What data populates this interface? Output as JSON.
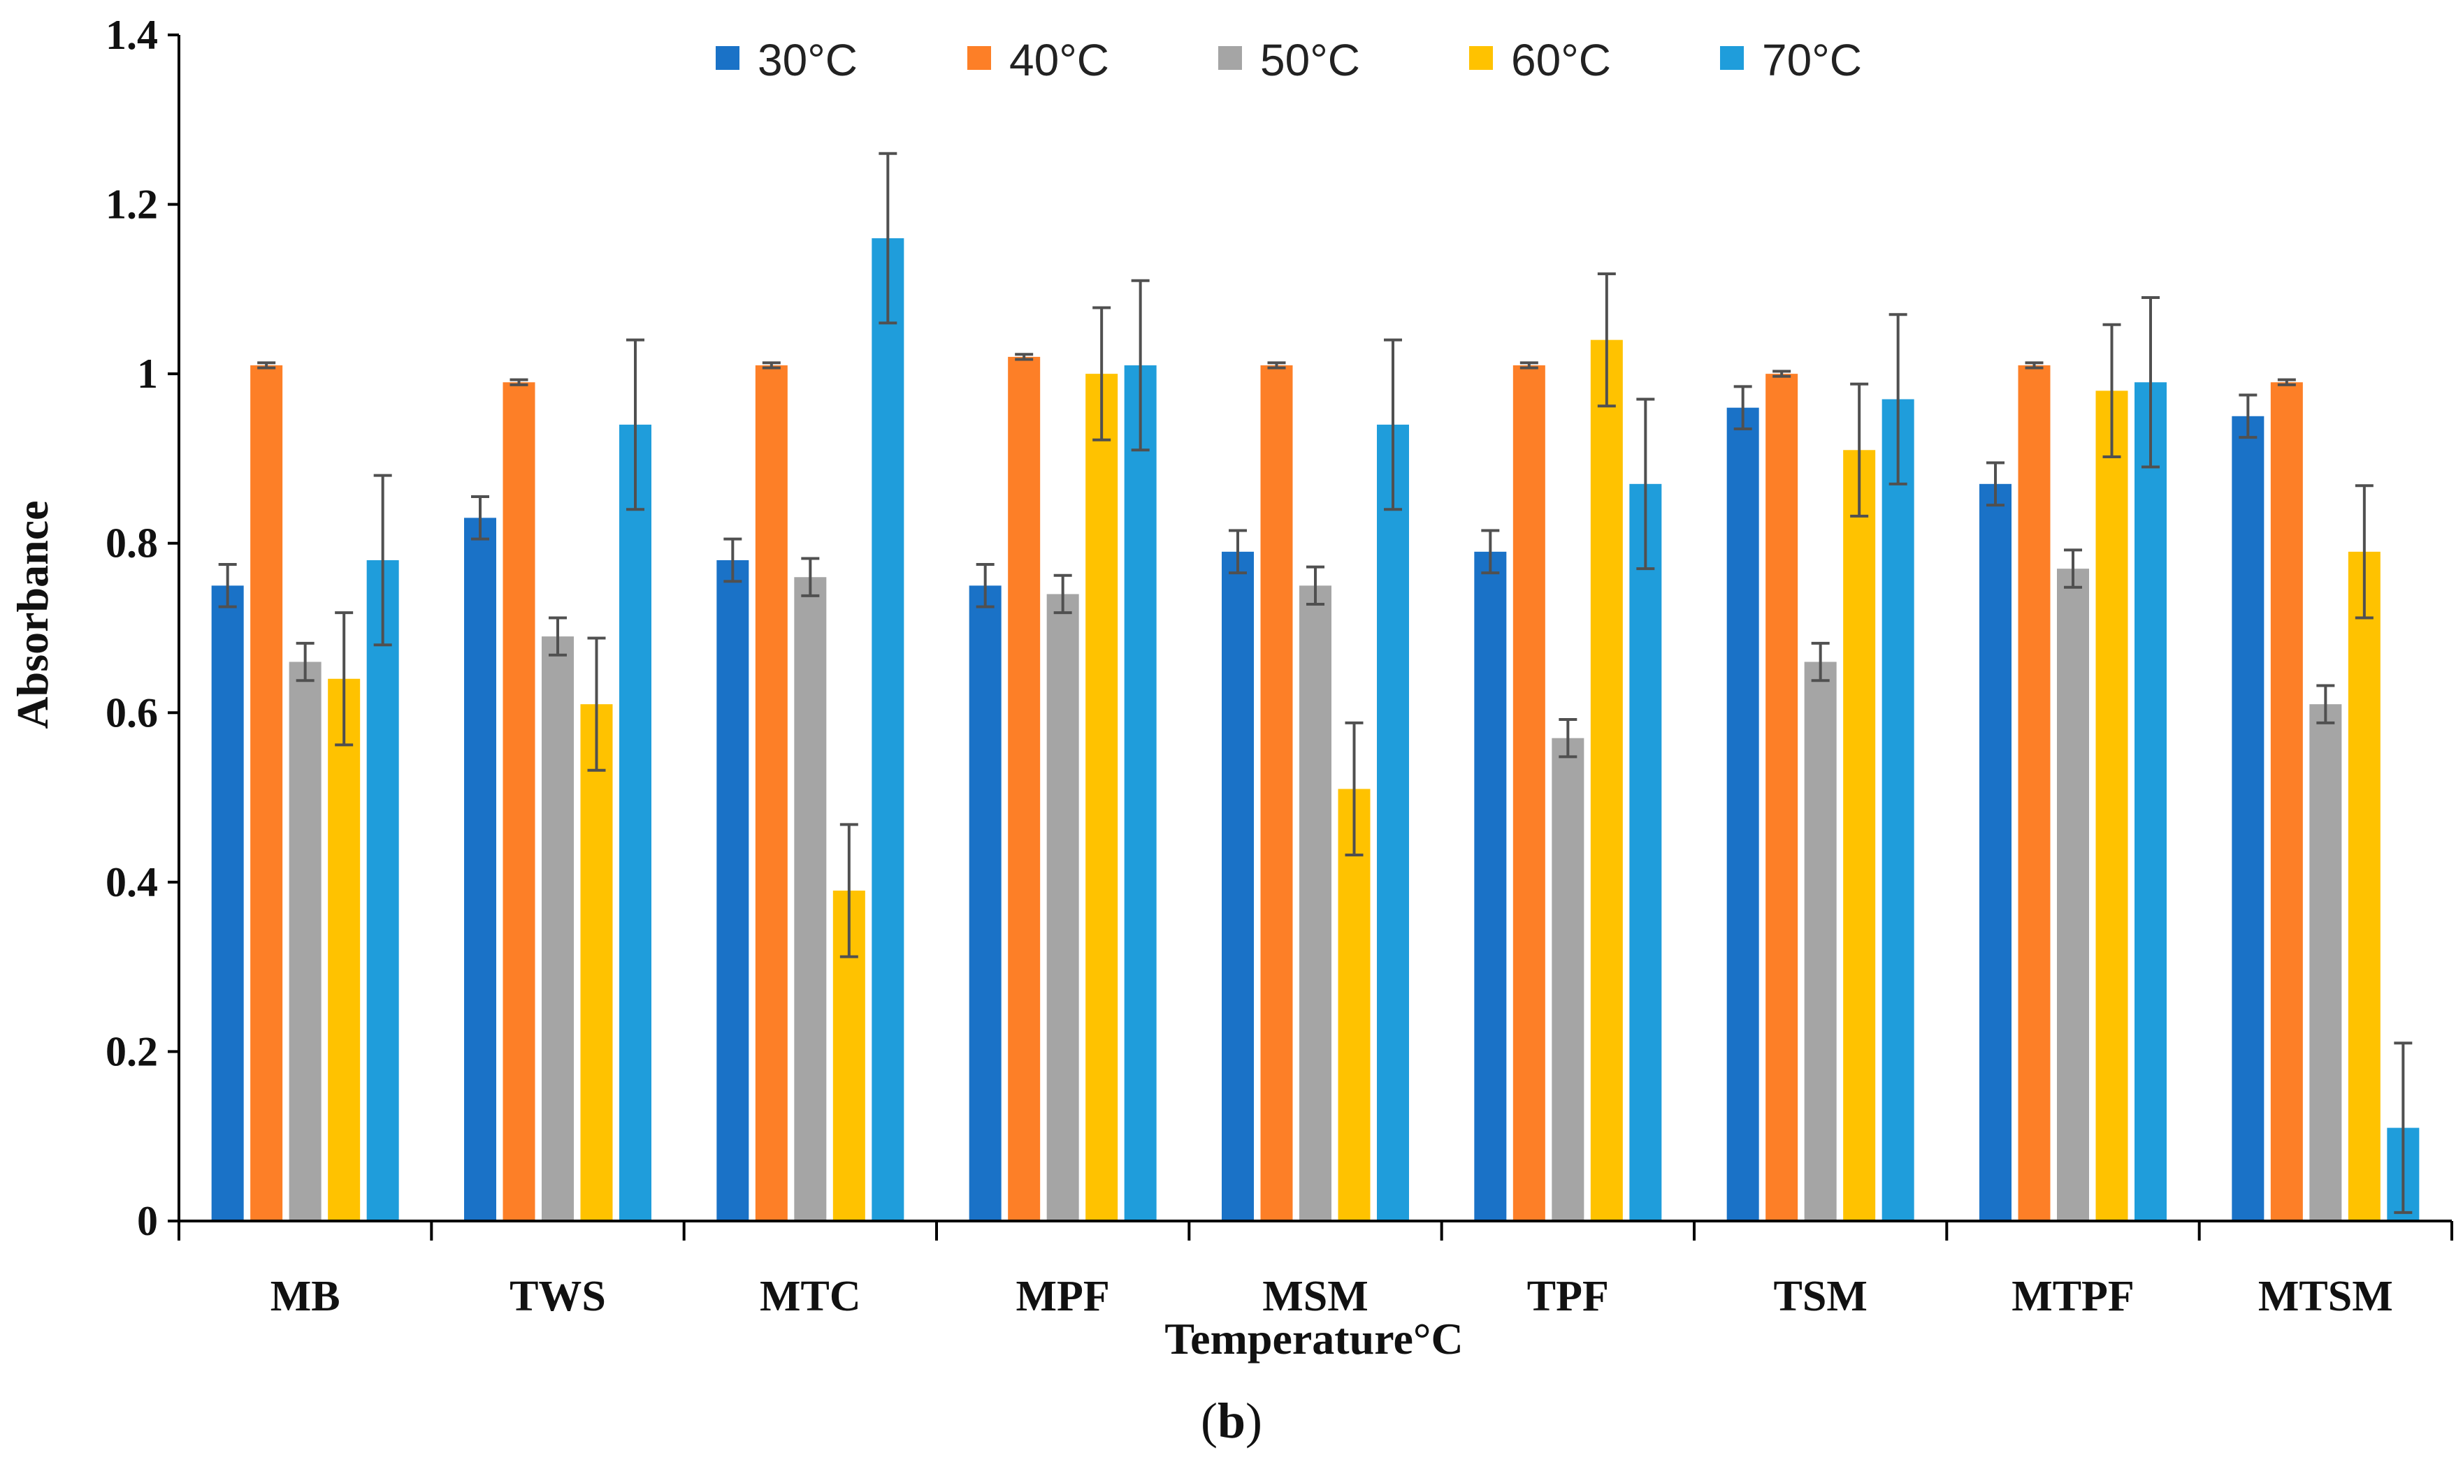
{
  "chart_data": {
    "type": "bar",
    "title": "",
    "panel_label": "(b)",
    "panel_label_parts": [
      "(",
      "b",
      ")"
    ],
    "xlabel": "Temperature°C",
    "ylabel": "Absorbance",
    "ylim": [
      0,
      1.4
    ],
    "yticks": [
      0,
      0.2,
      0.4,
      0.6,
      0.8,
      1,
      1.2,
      1.4
    ],
    "ytick_labels": [
      "0",
      "0.2",
      "0.4",
      "0.6",
      "0.8",
      "1",
      "1.2",
      "1.4"
    ],
    "grid": false,
    "legend_position": "top",
    "categories": [
      "MB",
      "TWS",
      "MTC",
      "MPF",
      "MSM",
      "TPF",
      "TSM",
      "MTPF",
      "MTSM"
    ],
    "series": [
      {
        "name": "30°C",
        "color": "#1a72c7",
        "values": [
          0.75,
          0.83,
          0.78,
          0.75,
          0.79,
          0.79,
          0.96,
          0.87,
          0.95
        ],
        "errors": [
          0.025,
          0.025,
          0.025,
          0.025,
          0.025,
          0.025,
          0.025,
          0.025,
          0.025
        ]
      },
      {
        "name": "40°C",
        "color": "#fd7f27",
        "values": [
          1.01,
          0.99,
          1.01,
          1.02,
          1.01,
          1.01,
          1.0,
          1.01,
          0.99
        ],
        "errors": [
          0.003,
          0.003,
          0.003,
          0.003,
          0.003,
          0.003,
          0.003,
          0.003,
          0.003
        ]
      },
      {
        "name": "50°C",
        "color": "#a5a5a5",
        "values": [
          0.66,
          0.69,
          0.76,
          0.74,
          0.75,
          0.57,
          0.66,
          0.77,
          0.61
        ],
        "errors": [
          0.022,
          0.022,
          0.022,
          0.022,
          0.022,
          0.022,
          0.022,
          0.022,
          0.022
        ]
      },
      {
        "name": "60°C",
        "color": "#ffc200",
        "values": [
          0.64,
          0.61,
          0.39,
          1.0,
          0.51,
          1.04,
          0.91,
          0.98,
          0.79
        ],
        "errors": [
          0.078,
          0.078,
          0.078,
          0.078,
          0.078,
          0.078,
          0.078,
          0.078,
          0.078
        ]
      },
      {
        "name": "70°C",
        "color": "#1f9ddb",
        "values": [
          0.78,
          0.94,
          1.16,
          1.01,
          0.94,
          0.87,
          0.97,
          0.99,
          0.11
        ],
        "errors": [
          0.1,
          0.1,
          0.1,
          0.1,
          0.1,
          0.1,
          0.1,
          0.1,
          0.1
        ]
      }
    ]
  }
}
